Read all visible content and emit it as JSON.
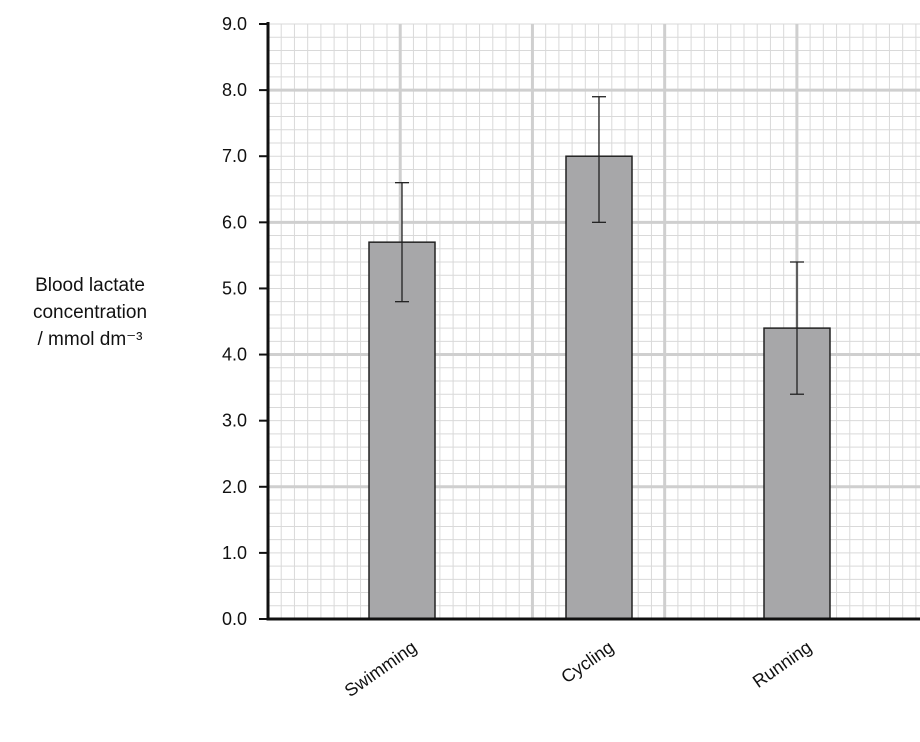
{
  "chart_data": {
    "type": "bar",
    "categories": [
      "Swimming",
      "Cycling",
      "Running"
    ],
    "values": [
      5.7,
      7.0,
      4.4
    ],
    "error_bars": [
      {
        "low": 4.8,
        "high": 6.6
      },
      {
        "low": 6.0,
        "high": 7.9
      },
      {
        "low": 3.4,
        "high": 5.4
      }
    ],
    "ylabel_lines": [
      "Blood lactate",
      "concentration",
      "/ mmol dm⁻³"
    ],
    "xlabel": "",
    "ylim": [
      0,
      9
    ],
    "yticks": [
      0,
      1,
      2,
      3,
      4,
      5,
      6,
      7,
      8,
      9
    ],
    "ytick_labels": [
      "0.0",
      "1.0",
      "2.0",
      "3.0",
      "4.0",
      "5.0",
      "6.0",
      "7.0",
      "8.0",
      "9.0"
    ],
    "grid": true,
    "legend": "none",
    "colors": {
      "bar": "#a7a7a9",
      "grid_major": "#cfcfcf",
      "grid_minor": "#d9d9d9",
      "axis": "#111111"
    }
  }
}
